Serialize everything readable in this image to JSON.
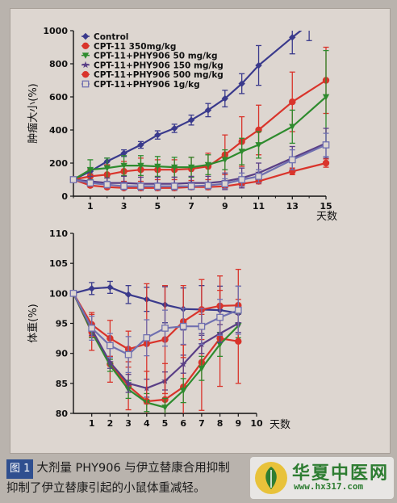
{
  "caption": {
    "fig_label": "图 1",
    "line1": "大剂量 PHY906 与伊立替康合用抑制",
    "line2": "抑制了伊立替康引起的小鼠体重减轻。"
  },
  "watermark": {
    "name": "华夏中医网",
    "url": "www.hx317.com"
  },
  "chart_data": [
    {
      "type": "line",
      "ylabel": "肿瘤大小(%)",
      "xlabel": "天数",
      "xlim": [
        0,
        15
      ],
      "ylim": [
        0,
        1000
      ],
      "xticks": [
        1,
        3,
        5,
        7,
        9,
        11,
        13,
        15
      ],
      "yticks": [
        0,
        200,
        400,
        600,
        800,
        1000
      ],
      "legend_position": "top-left",
      "series": [
        {
          "name": "Control",
          "color": "#3a3a8c",
          "marker": "diamond",
          "x": [
            0,
            1,
            2,
            3,
            4,
            5,
            6,
            7,
            8,
            9,
            10,
            11,
            13,
            14
          ],
          "y": [
            100,
            150,
            210,
            260,
            310,
            370,
            410,
            460,
            520,
            590,
            680,
            790,
            960,
            1040
          ],
          "err": [
            10,
            15,
            20,
            20,
            20,
            25,
            25,
            30,
            40,
            50,
            60,
            120,
            100,
            100
          ]
        },
        {
          "name": "CPT-11 350mg/kg",
          "color": "#d9342b",
          "marker": "circle",
          "x": [
            0,
            1,
            2,
            3,
            4,
            5,
            6,
            7,
            8,
            9,
            10,
            11,
            13,
            15
          ],
          "y": [
            100,
            120,
            130,
            150,
            160,
            160,
            160,
            165,
            180,
            250,
            330,
            400,
            570,
            700
          ],
          "err": [
            10,
            40,
            60,
            60,
            70,
            60,
            60,
            70,
            80,
            120,
            150,
            150,
            180,
            200
          ]
        },
        {
          "name": "CPT-11+PHY906 50 mg/kg",
          "color": "#2e8b2e",
          "marker": "triangle-down",
          "x": [
            0,
            1,
            2,
            3,
            4,
            5,
            6,
            7,
            8,
            9,
            10,
            11,
            13,
            15
          ],
          "y": [
            100,
            160,
            170,
            185,
            185,
            180,
            175,
            175,
            190,
            220,
            270,
            310,
            420,
            600
          ],
          "err": [
            10,
            60,
            60,
            60,
            60,
            60,
            60,
            60,
            60,
            60,
            80,
            80,
            100,
            280
          ]
        },
        {
          "name": "CPT-11+PHY906 150 mg/kg",
          "color": "#5a3f86",
          "marker": "star",
          "x": [
            0,
            1,
            2,
            3,
            4,
            5,
            6,
            7,
            8,
            9,
            10,
            11,
            13,
            15
          ],
          "y": [
            100,
            90,
            80,
            80,
            75,
            75,
            75,
            80,
            80,
            90,
            110,
            140,
            230,
            320
          ],
          "err": [
            10,
            30,
            30,
            40,
            40,
            40,
            40,
            40,
            40,
            50,
            60,
            60,
            70,
            90
          ]
        },
        {
          "name": "CPT-11+PHY906 500 mg/kg",
          "color": "#d9342b",
          "marker": "circle",
          "x": [
            0,
            1,
            2,
            3,
            4,
            5,
            6,
            7,
            8,
            9,
            10,
            11,
            13,
            15
          ],
          "y": [
            100,
            65,
            55,
            50,
            50,
            50,
            50,
            55,
            55,
            60,
            75,
            90,
            150,
            200
          ],
          "err": [
            10,
            10,
            10,
            10,
            10,
            10,
            10,
            10,
            10,
            10,
            15,
            15,
            20,
            25
          ]
        },
        {
          "name": "CPT-11+PHY906 1g/kg",
          "color": "#7070b0",
          "marker": "square-open",
          "x": [
            0,
            1,
            2,
            3,
            4,
            5,
            6,
            7,
            8,
            9,
            10,
            11,
            13,
            15
          ],
          "y": [
            100,
            80,
            70,
            60,
            60,
            60,
            60,
            60,
            65,
            75,
            100,
            120,
            220,
            310
          ],
          "err": [
            10,
            15,
            20,
            20,
            20,
            20,
            20,
            20,
            20,
            30,
            40,
            40,
            60,
            70
          ]
        }
      ]
    },
    {
      "type": "line",
      "ylabel": "体重(%)",
      "xlabel": "天数",
      "xlim": [
        0,
        10
      ],
      "ylim": [
        80,
        110
      ],
      "xticks": [
        1,
        2,
        3,
        4,
        5,
        6,
        7,
        8,
        9,
        10
      ],
      "yticks": [
        80,
        85,
        90,
        95,
        100,
        105,
        110
      ],
      "series": [
        {
          "name": "Control",
          "color": "#3a3a8c",
          "marker": "diamond",
          "x": [
            0,
            1,
            2,
            3,
            4,
            5,
            6,
            7,
            8,
            9
          ],
          "y": [
            100,
            100.8,
            101,
            99.8,
            99,
            98.1,
            97.4,
            97.3,
            97.2,
            96.7
          ],
          "err": [
            0.3,
            1,
            1,
            1.5,
            2,
            3,
            3.5,
            4,
            4,
            4.5
          ]
        },
        {
          "name": "CPT-11 350mg/kg",
          "color": "#d9342b",
          "marker": "circle",
          "x": [
            0,
            1,
            2,
            3,
            4,
            5,
            6,
            7,
            8,
            9
          ],
          "y": [
            100,
            93.5,
            88.2,
            84.6,
            82,
            82.3,
            84.4,
            88.5,
            92.5,
            92
          ],
          "err": [
            0.3,
            3,
            3,
            4,
            5,
            6,
            7,
            8,
            8,
            7
          ]
        },
        {
          "name": "CPT-11+PHY906 50 mg/kg",
          "color": "#2e8b2e",
          "marker": "triangle-down",
          "x": [
            0,
            1,
            2,
            3,
            4,
            5,
            6,
            7,
            8,
            9
          ],
          "y": [
            100,
            93.6,
            88,
            84,
            81.8,
            81,
            83.8,
            87.5,
            91.5,
            94.6
          ],
          "err": [
            0.3,
            1,
            1,
            1.5,
            1.5,
            1.5,
            2,
            2,
            2,
            2
          ]
        },
        {
          "name": "CPT-11+PHY906 150 mg/kg",
          "color": "#5a3f86",
          "marker": "star",
          "x": [
            0,
            1,
            2,
            3,
            4,
            5,
            6,
            7,
            8,
            9
          ],
          "y": [
            100,
            94,
            88.5,
            85,
            84.2,
            85.4,
            88.2,
            91.5,
            93.3,
            95
          ],
          "err": [
            0.3,
            1,
            1,
            1.5,
            1.5,
            1.5,
            1.5,
            1.5,
            1.5,
            1.5
          ]
        },
        {
          "name": "CPT-11+PHY906 500 mg/kg",
          "color": "#d9342b",
          "marker": "circle",
          "x": [
            0,
            1,
            2,
            3,
            4,
            5,
            6,
            7,
            8,
            9
          ],
          "y": [
            100,
            94.8,
            92.5,
            90.7,
            91.6,
            92.3,
            95.3,
            97.3,
            97.9,
            98
          ],
          "err": [
            0.3,
            2,
            3,
            3,
            10,
            9,
            6,
            5,
            5,
            6
          ]
        },
        {
          "name": "CPT-11+PHY906 1g/kg",
          "color": "#7070b0",
          "marker": "square-open",
          "x": [
            0,
            1,
            2,
            3,
            4,
            5,
            6,
            7,
            8,
            9
          ],
          "y": [
            100,
            94.2,
            91.3,
            89.8,
            92.6,
            94.2,
            94.5,
            94.5,
            96,
            97.2
          ],
          "err": [
            0.3,
            2,
            2,
            3,
            3,
            3,
            3,
            3,
            3,
            4
          ]
        }
      ]
    }
  ]
}
